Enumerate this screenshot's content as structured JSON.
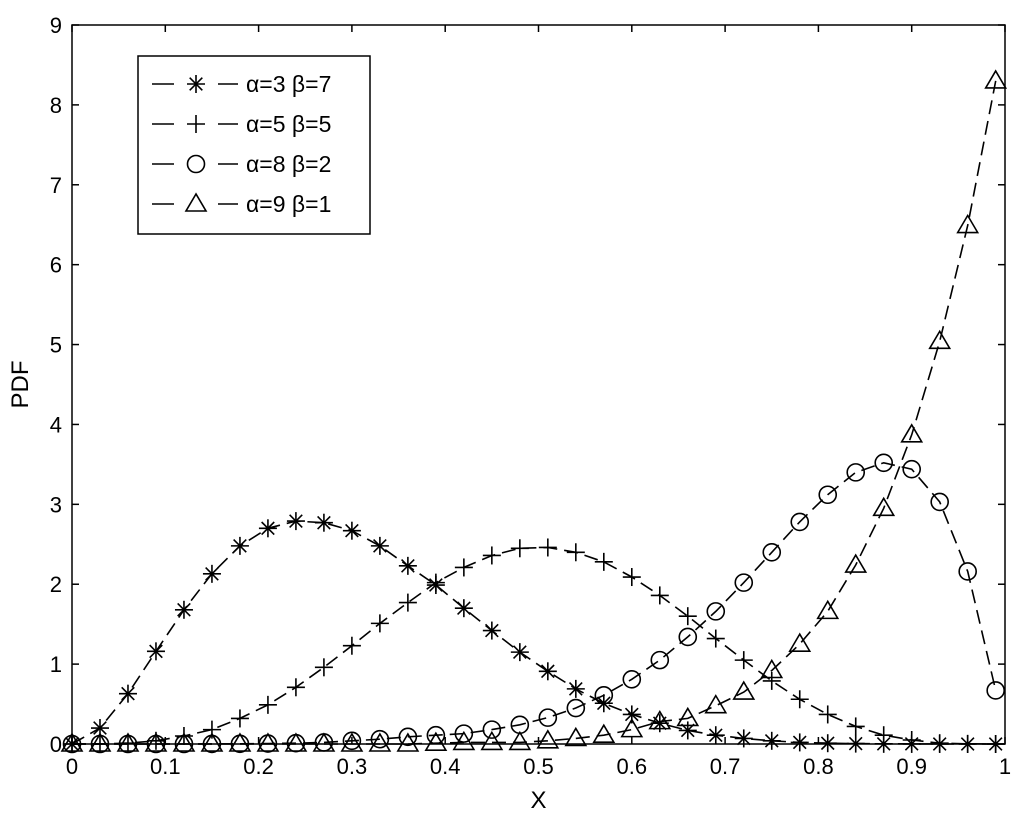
{
  "chart_data": {
    "type": "line",
    "xlabel": "X",
    "ylabel": "PDF",
    "xlim": [
      0,
      1
    ],
    "ylim": [
      0,
      9
    ],
    "xticks": [
      "0",
      "0.1",
      "0.2",
      "0.3",
      "0.4",
      "0.5",
      "0.6",
      "0.7",
      "0.8",
      "0.9",
      "1"
    ],
    "yticks": [
      "0",
      "1",
      "2",
      "3",
      "4",
      "5",
      "6",
      "7",
      "8",
      "9"
    ],
    "grid": false,
    "legend_position": "top-left",
    "x": [
      0,
      0.03,
      0.06,
      0.09,
      0.12,
      0.15,
      0.18,
      0.21,
      0.24,
      0.27,
      0.3,
      0.33,
      0.36,
      0.39,
      0.42,
      0.45,
      0.48,
      0.51,
      0.54,
      0.57,
      0.6,
      0.63,
      0.66,
      0.69,
      0.72,
      0.75,
      0.78,
      0.81,
      0.84,
      0.87,
      0.9,
      0.93,
      0.96,
      0.99
    ],
    "series": [
      {
        "name": "α=3 β=7",
        "marker": "asterisk",
        "values": [
          0,
          0.2,
          0.63,
          1.16,
          1.68,
          2.13,
          2.48,
          2.7,
          2.79,
          2.77,
          2.67,
          2.48,
          2.23,
          1.99,
          1.7,
          1.42,
          1.15,
          0.91,
          0.69,
          0.51,
          0.37,
          0.26,
          0.17,
          0.11,
          0.07,
          0.04,
          0.02,
          0.01,
          0.005,
          0.002,
          0.001,
          0.0003,
          0,
          0
        ]
      },
      {
        "name": "α=5 β=5",
        "marker": "plus",
        "values": [
          0,
          0.001,
          0.01,
          0.04,
          0.1,
          0.18,
          0.32,
          0.49,
          0.71,
          0.96,
          1.23,
          1.51,
          1.77,
          2.02,
          2.21,
          2.36,
          2.45,
          2.46,
          2.4,
          2.28,
          2.09,
          1.86,
          1.6,
          1.32,
          1.05,
          0.79,
          0.56,
          0.37,
          0.22,
          0.11,
          0.05,
          0.01,
          0.002,
          0
        ]
      },
      {
        "name": "α=8 β=2",
        "marker": "circle",
        "values": [
          0,
          0,
          0,
          0,
          0,
          0.001,
          0.002,
          0.006,
          0.01,
          0.02,
          0.04,
          0.06,
          0.09,
          0.11,
          0.13,
          0.18,
          0.24,
          0.33,
          0.45,
          0.61,
          0.81,
          1.05,
          1.34,
          1.66,
          2.02,
          2.4,
          2.78,
          3.12,
          3.4,
          3.52,
          3.44,
          3.03,
          2.16,
          0.67
        ]
      },
      {
        "name": "α=9 β=1",
        "marker": "triangle",
        "values": [
          0,
          0,
          0,
          0,
          0,
          0,
          0,
          0,
          0,
          0,
          0,
          0,
          0,
          0.01,
          0.02,
          0.02,
          0.02,
          0.04,
          0.07,
          0.11,
          0.18,
          0.28,
          0.32,
          0.48,
          0.65,
          0.92,
          1.25,
          1.66,
          2.24,
          2.95,
          3.87,
          5.04,
          6.49,
          8.3
        ]
      }
    ]
  }
}
